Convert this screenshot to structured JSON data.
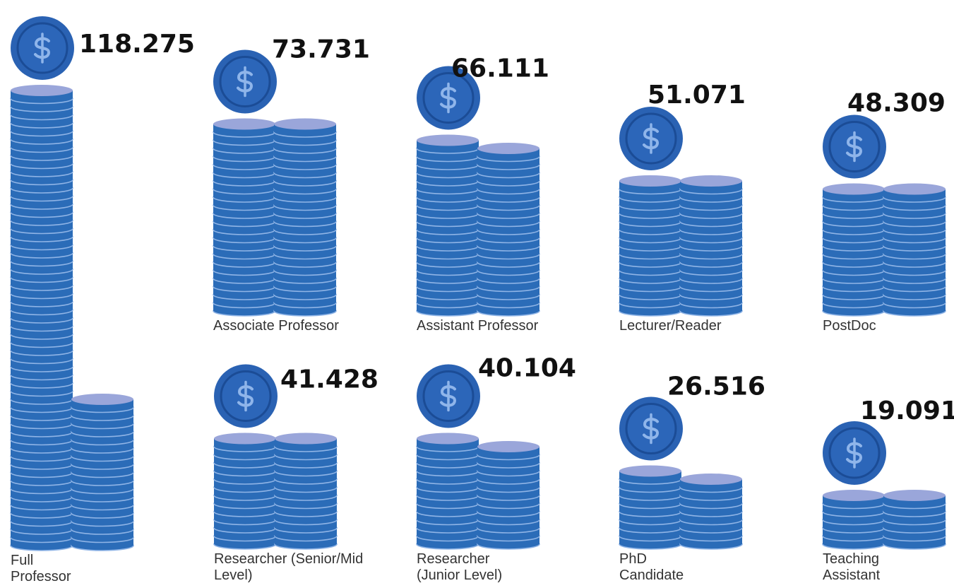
{
  "chart_data": {
    "type": "pictorial",
    "categories": [
      "Full Professor",
      "Associate Professor",
      "Assistant Professor",
      "Lecturer/Reader",
      "PostDoc",
      "Researcher (Senior/Mid Level)",
      "Researcher (Junior Level)",
      "PhD Candidate",
      "Teaching Assistant"
    ],
    "values": [
      118275,
      73731,
      66111,
      51071,
      48309,
      41428,
      40104,
      26516,
      19091
    ],
    "value_labels": [
      "118.275",
      "73.731",
      "66.111",
      "51.071",
      "48.309",
      "41.428",
      "40.104",
      "26.516",
      "19.091"
    ],
    "color": "#2b6cb8"
  }
}
